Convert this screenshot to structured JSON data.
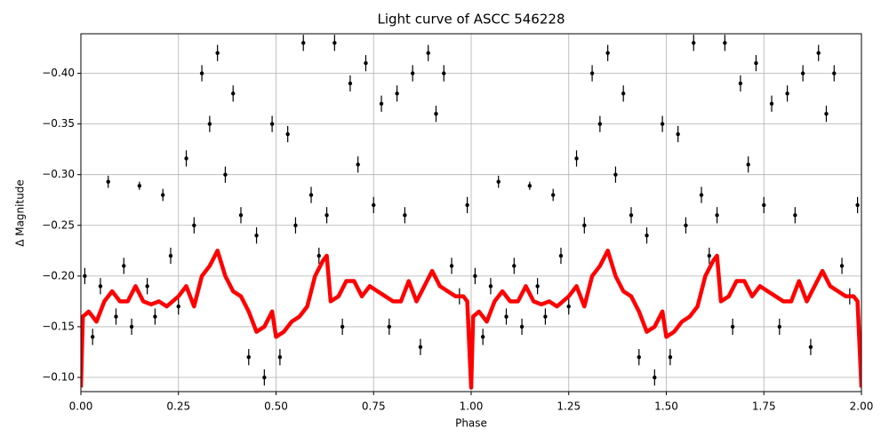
{
  "chart_data": {
    "type": "scatter",
    "title": "Light curve of ASCC 546228",
    "x_label": "Phase",
    "y_label": "Δ Magnitude",
    "xlim": [
      0,
      2
    ],
    "ylim": [
      -0.086,
      -0.439
    ],
    "grid": true,
    "xticks": [
      {
        "value": 0,
        "label": "0.00"
      },
      {
        "value": 0.25,
        "label": "0.25"
      },
      {
        "value": 0.5,
        "label": "0.50"
      },
      {
        "value": 0.75,
        "label": "0.75"
      },
      {
        "value": 1,
        "label": "1.00"
      },
      {
        "value": 1.25,
        "label": "1.25"
      },
      {
        "value": 1.5,
        "label": "1.50"
      },
      {
        "value": 1.75,
        "label": "1.75"
      },
      {
        "value": 2,
        "label": "2.00"
      }
    ],
    "yticks": [
      {
        "value": -0.1,
        "label": "−0.10"
      },
      {
        "value": -0.15,
        "label": "−0.15"
      },
      {
        "value": -0.2,
        "label": "−0.20"
      },
      {
        "value": -0.25,
        "label": "−0.25"
      },
      {
        "value": -0.3,
        "label": "−0.30"
      },
      {
        "value": -0.35,
        "label": "−0.35"
      },
      {
        "value": -0.4,
        "label": "−0.40"
      }
    ],
    "series": [
      {
        "type": "scatter",
        "color": "#000000",
        "x": [
          0.01,
          0.03,
          0.05,
          0.07,
          0.09,
          0.11,
          0.13,
          0.15,
          0.17,
          0.19,
          0.21,
          0.23,
          0.25,
          0.27,
          0.29,
          0.31,
          0.33,
          0.35,
          0.37,
          0.39,
          0.41,
          0.43,
          0.45,
          0.47,
          0.49,
          0.51,
          0.53,
          0.55,
          0.57,
          0.59,
          0.61,
          0.63,
          0.65,
          0.67,
          0.69,
          0.71,
          0.73,
          0.75,
          0.77,
          0.79,
          0.81,
          0.83,
          0.85,
          0.87,
          0.89,
          0.91,
          0.93,
          0.95,
          0.97,
          0.99,
          1.01,
          1.03,
          1.05,
          1.07,
          1.09,
          1.11,
          1.13,
          1.15,
          1.17,
          1.19,
          1.21,
          1.23,
          1.25,
          1.27,
          1.29,
          1.31,
          1.33,
          1.35,
          1.37,
          1.39,
          1.41,
          1.43,
          1.45,
          1.47,
          1.49,
          1.51,
          1.53,
          1.55,
          1.57,
          1.59,
          1.61,
          1.63,
          1.65,
          1.67,
          1.69,
          1.71,
          1.73,
          1.75,
          1.77,
          1.79,
          1.81,
          1.83,
          1.85,
          1.87,
          1.89,
          1.91,
          1.93,
          1.95,
          1.97,
          1.99
        ],
        "values": [
          -0.2,
          -0.14,
          -0.19,
          -0.293,
          -0.16,
          -0.21,
          -0.15,
          -0.289,
          -0.19,
          -0.16,
          -0.28,
          -0.22,
          -0.17,
          -0.316,
          -0.25,
          -0.4,
          -0.35,
          -0.42,
          -0.3,
          -0.38,
          -0.26,
          -0.12,
          -0.24,
          -0.1,
          -0.35,
          -0.12,
          -0.34,
          -0.25,
          -0.43,
          -0.28,
          -0.22,
          -0.26,
          -0.43,
          -0.15,
          -0.39,
          -0.31,
          -0.41,
          -0.27,
          -0.37,
          -0.15,
          -0.38,
          -0.26,
          -0.4,
          -0.13,
          -0.42,
          -0.36,
          -0.4,
          -0.21,
          -0.18,
          -0.27,
          -0.2,
          -0.14,
          -0.19,
          -0.293,
          -0.16,
          -0.21,
          -0.15,
          -0.289,
          -0.19,
          -0.16,
          -0.28,
          -0.22,
          -0.17,
          -0.316,
          -0.25,
          -0.4,
          -0.35,
          -0.42,
          -0.3,
          -0.38,
          -0.26,
          -0.12,
          -0.24,
          -0.1,
          -0.35,
          -0.12,
          -0.34,
          -0.25,
          -0.43,
          -0.28,
          -0.22,
          -0.26,
          -0.43,
          -0.15,
          -0.39,
          -0.31,
          -0.41,
          -0.27,
          -0.37,
          -0.15,
          -0.38,
          -0.26,
          -0.4,
          -0.13,
          -0.42,
          -0.36,
          -0.4,
          -0.21,
          -0.18,
          -0.27
        ],
        "errors": [
          0.008,
          0.008,
          0.008,
          0.006,
          0.008,
          0.008,
          0.008,
          0.004,
          0.008,
          0.008,
          0.006,
          0.008,
          0.008,
          0.008,
          0.008,
          0.008,
          0.008,
          0.008,
          0.008,
          0.008,
          0.008,
          0.008,
          0.008,
          0.008,
          0.008,
          0.008,
          0.008,
          0.008,
          0.008,
          0.008,
          0.008,
          0.008,
          0.008,
          0.008,
          0.008,
          0.008,
          0.008,
          0.008,
          0.008,
          0.008,
          0.008,
          0.008,
          0.008,
          0.008,
          0.008,
          0.008,
          0.008,
          0.008,
          0.008,
          0.008,
          0.008,
          0.008,
          0.008,
          0.006,
          0.008,
          0.008,
          0.008,
          0.004,
          0.008,
          0.008,
          0.006,
          0.008,
          0.008,
          0.008,
          0.008,
          0.008,
          0.008,
          0.008,
          0.008,
          0.008,
          0.008,
          0.008,
          0.008,
          0.008,
          0.008,
          0.008,
          0.008,
          0.008,
          0.008,
          0.008,
          0.008,
          0.008,
          0.008,
          0.008,
          0.008,
          0.008,
          0.008,
          0.008,
          0.008,
          0.008,
          0.008,
          0.008,
          0.008,
          0.008,
          0.008,
          0.008,
          0.008,
          0.008,
          0.008,
          0.008
        ]
      },
      {
        "type": "line",
        "color": "#ff0000",
        "x": [
          0,
          0.005,
          0.02,
          0.04,
          0.06,
          0.08,
          0.1,
          0.12,
          0.14,
          0.16,
          0.18,
          0.2,
          0.22,
          0.25,
          0.27,
          0.29,
          0.31,
          0.33,
          0.35,
          0.37,
          0.39,
          0.41,
          0.43,
          0.45,
          0.47,
          0.49,
          0.5,
          0.52,
          0.54,
          0.56,
          0.58,
          0.6,
          0.62,
          0.63,
          0.64,
          0.66,
          0.68,
          0.7,
          0.72,
          0.74,
          0.76,
          0.78,
          0.8,
          0.82,
          0.84,
          0.86,
          0.88,
          0.9,
          0.92,
          0.94,
          0.96,
          0.98,
          0.99,
          1.0,
          1.005,
          1.02,
          1.04,
          1.06,
          1.08,
          1.1,
          1.12,
          1.14,
          1.16,
          1.18,
          1.2,
          1.22,
          1.25,
          1.27,
          1.29,
          1.31,
          1.33,
          1.35,
          1.37,
          1.39,
          1.41,
          1.43,
          1.45,
          1.47,
          1.49,
          1.5,
          1.52,
          1.54,
          1.56,
          1.58,
          1.6,
          1.62,
          1.63,
          1.64,
          1.66,
          1.68,
          1.7,
          1.72,
          1.74,
          1.76,
          1.78,
          1.8,
          1.82,
          1.84,
          1.86,
          1.88,
          1.9,
          1.92,
          1.94,
          1.96,
          1.98,
          1.99,
          2.0
        ],
        "values": [
          -0.09,
          -0.16,
          -0.165,
          -0.155,
          -0.175,
          -0.185,
          -0.175,
          -0.175,
          -0.19,
          -0.175,
          -0.172,
          -0.175,
          -0.17,
          -0.18,
          -0.19,
          -0.17,
          -0.2,
          -0.21,
          -0.225,
          -0.2,
          -0.185,
          -0.18,
          -0.165,
          -0.145,
          -0.15,
          -0.165,
          -0.14,
          -0.145,
          -0.155,
          -0.16,
          -0.17,
          -0.2,
          -0.215,
          -0.22,
          -0.175,
          -0.18,
          -0.195,
          -0.195,
          -0.18,
          -0.19,
          -0.185,
          -0.18,
          -0.175,
          -0.175,
          -0.195,
          -0.175,
          -0.19,
          -0.205,
          -0.19,
          -0.185,
          -0.18,
          -0.18,
          -0.175,
          -0.09,
          -0.16,
          -0.165,
          -0.155,
          -0.175,
          -0.185,
          -0.175,
          -0.175,
          -0.19,
          -0.175,
          -0.172,
          -0.175,
          -0.17,
          -0.18,
          -0.19,
          -0.17,
          -0.2,
          -0.21,
          -0.225,
          -0.2,
          -0.185,
          -0.18,
          -0.165,
          -0.145,
          -0.15,
          -0.165,
          -0.14,
          -0.145,
          -0.155,
          -0.16,
          -0.17,
          -0.2,
          -0.215,
          -0.22,
          -0.175,
          -0.18,
          -0.195,
          -0.195,
          -0.18,
          -0.19,
          -0.185,
          -0.18,
          -0.175,
          -0.175,
          -0.195,
          -0.175,
          -0.19,
          -0.205,
          -0.19,
          -0.185,
          -0.18,
          -0.18,
          -0.175,
          -0.09
        ]
      }
    ]
  }
}
